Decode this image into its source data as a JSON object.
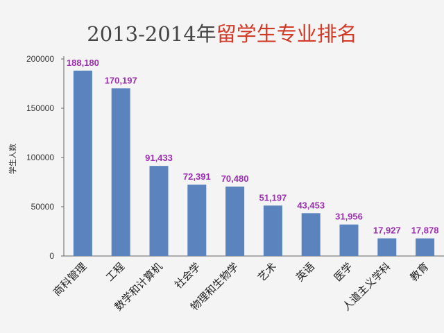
{
  "title": {
    "year": "2013-2014年",
    "highlight": "留学生专业排名"
  },
  "colors": {
    "bar": "#5b84bf",
    "data_label": "#9b2fae",
    "title_accent": "#d23a28",
    "background": "#f4f4f4"
  },
  "chart_data": {
    "type": "bar",
    "title": "2013-2014年留学生专业排名",
    "xlabel": "",
    "ylabel": "学生人数",
    "ylim": [
      0,
      200000
    ],
    "yticks": [
      0,
      50000,
      100000,
      150000,
      200000
    ],
    "grid": false,
    "categories": [
      "商科管理",
      "工程",
      "数学和计算机",
      "社会学",
      "物理和生物学",
      "艺术",
      "英语",
      "医学",
      "人道主义学科",
      "教育"
    ],
    "values": [
      188180,
      170197,
      91433,
      72391,
      70480,
      51197,
      43453,
      31956,
      17927,
      17878
    ],
    "data_labels": [
      "188,180",
      "170,197",
      "91,433",
      "72,391",
      "70,480",
      "51,197",
      "43,453",
      "31,956",
      "17,927",
      "17,878"
    ]
  }
}
